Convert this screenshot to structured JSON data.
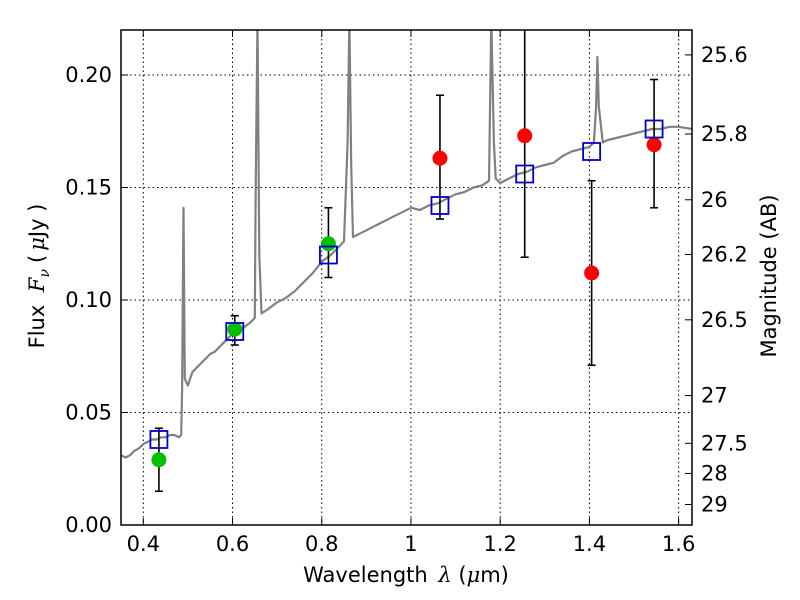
{
  "chart_data": {
    "type": "scatter",
    "title": "",
    "xlabel": "Wavelength  λ (μm)",
    "ylabel": "Flux  Fν  ( μJy )",
    "y2label": "Magnitude (AB)",
    "xlim": [
      0.35,
      1.63
    ],
    "ylim": [
      0.0,
      0.22
    ],
    "grid": true,
    "x_ticks": [
      0.4,
      0.6,
      0.8,
      1.0,
      1.2,
      1.4,
      1.6
    ],
    "x_tick_labels": [
      "0.4",
      "0.6",
      "0.8",
      "1",
      "1.2",
      "1.4",
      "1.6"
    ],
    "y_ticks": [
      0.0,
      0.05,
      0.1,
      0.15,
      0.2
    ],
    "y_tick_labels": [
      "0.00",
      "0.05",
      "0.10",
      "0.15",
      "0.20"
    ],
    "mag_ticks": [
      "25.6",
      "25.8",
      "26",
      "26.2",
      "26.5",
      "27",
      "27.5",
      "28",
      "29"
    ],
    "colors": {
      "spectrum": "#808080",
      "green_points": "#00c000",
      "red_points": "#ff0000",
      "model_squares": "#0000cc",
      "error_bars": "#000000"
    },
    "series": [
      {
        "name": "model spectrum",
        "kind": "line",
        "points": [
          [
            0.35,
            0.031
          ],
          [
            0.36,
            0.03
          ],
          [
            0.37,
            0.031
          ],
          [
            0.38,
            0.033
          ],
          [
            0.39,
            0.034
          ],
          [
            0.4,
            0.036
          ],
          [
            0.41,
            0.037
          ],
          [
            0.42,
            0.038
          ],
          [
            0.43,
            0.038
          ],
          [
            0.44,
            0.039
          ],
          [
            0.45,
            0.039
          ],
          [
            0.46,
            0.04
          ],
          [
            0.47,
            0.04
          ],
          [
            0.48,
            0.039
          ],
          [
            0.485,
            0.04
          ],
          [
            0.487,
            0.06
          ],
          [
            0.49,
            0.141
          ],
          [
            0.493,
            0.065
          ],
          [
            0.5,
            0.062
          ],
          [
            0.51,
            0.068
          ],
          [
            0.52,
            0.07
          ],
          [
            0.53,
            0.072
          ],
          [
            0.54,
            0.074
          ],
          [
            0.55,
            0.076
          ],
          [
            0.56,
            0.077
          ],
          [
            0.57,
            0.079
          ],
          [
            0.58,
            0.081
          ],
          [
            0.59,
            0.083
          ],
          [
            0.6,
            0.085
          ],
          [
            0.62,
            0.087
          ],
          [
            0.64,
            0.09
          ],
          [
            0.65,
            0.092
          ],
          [
            0.652,
            0.15
          ],
          [
            0.656,
            0.225
          ],
          [
            0.66,
            0.12
          ],
          [
            0.665,
            0.094
          ],
          [
            0.68,
            0.096
          ],
          [
            0.7,
            0.099
          ],
          [
            0.72,
            0.101
          ],
          [
            0.74,
            0.104
          ],
          [
            0.76,
            0.108
          ],
          [
            0.78,
            0.112
          ],
          [
            0.8,
            0.117
          ],
          [
            0.82,
            0.12
          ],
          [
            0.84,
            0.124
          ],
          [
            0.85,
            0.126
          ],
          [
            0.858,
            0.17
          ],
          [
            0.862,
            0.225
          ],
          [
            0.866,
            0.16
          ],
          [
            0.87,
            0.128
          ],
          [
            0.88,
            0.129
          ],
          [
            0.9,
            0.131
          ],
          [
            0.92,
            0.133
          ],
          [
            0.94,
            0.135
          ],
          [
            0.96,
            0.137
          ],
          [
            0.98,
            0.139
          ],
          [
            1.0,
            0.141
          ],
          [
            1.02,
            0.14
          ],
          [
            1.04,
            0.142
          ],
          [
            1.06,
            0.143
          ],
          [
            1.08,
            0.145
          ],
          [
            1.1,
            0.147
          ],
          [
            1.12,
            0.148
          ],
          [
            1.14,
            0.15
          ],
          [
            1.16,
            0.151
          ],
          [
            1.175,
            0.153
          ],
          [
            1.18,
            0.225
          ],
          [
            1.186,
            0.17
          ],
          [
            1.19,
            0.154
          ],
          [
            1.2,
            0.152
          ],
          [
            1.22,
            0.154
          ],
          [
            1.24,
            0.156
          ],
          [
            1.26,
            0.157
          ],
          [
            1.28,
            0.159
          ],
          [
            1.3,
            0.16
          ],
          [
            1.32,
            0.161
          ],
          [
            1.34,
            0.164
          ],
          [
            1.36,
            0.166
          ],
          [
            1.38,
            0.167
          ],
          [
            1.4,
            0.168
          ],
          [
            1.41,
            0.17
          ],
          [
            1.415,
            0.186
          ],
          [
            1.418,
            0.208
          ],
          [
            1.421,
            0.186
          ],
          [
            1.43,
            0.17
          ],
          [
            1.44,
            0.171
          ],
          [
            1.46,
            0.172
          ],
          [
            1.48,
            0.173
          ],
          [
            1.5,
            0.174
          ],
          [
            1.52,
            0.175
          ],
          [
            1.54,
            0.176
          ],
          [
            1.56,
            0.176
          ],
          [
            1.58,
            0.177
          ],
          [
            1.6,
            0.177
          ],
          [
            1.63,
            0.176
          ]
        ]
      },
      {
        "name": "observed (green)",
        "kind": "points",
        "points": [
          {
            "x": 0.435,
            "y": 0.029,
            "yerr": [
              0.015,
              0.043
            ]
          },
          {
            "x": 0.605,
            "y": 0.087,
            "yerr": [
              0.08,
              0.093
            ]
          },
          {
            "x": 0.815,
            "y": 0.125,
            "yerr": [
              0.11,
              0.141
            ]
          }
        ]
      },
      {
        "name": "observed (red)",
        "kind": "points",
        "points": [
          {
            "x": 1.065,
            "y": 0.163,
            "yerr": [
              0.136,
              0.191
            ]
          },
          {
            "x": 1.255,
            "y": 0.173,
            "yerr": [
              0.119,
              0.23
            ]
          },
          {
            "x": 1.405,
            "y": 0.112,
            "yerr": [
              0.071,
              0.153
            ]
          },
          {
            "x": 1.545,
            "y": 0.169,
            "yerr": [
              0.141,
              0.198
            ]
          }
        ]
      },
      {
        "name": "model photometry",
        "kind": "squares",
        "points": [
          {
            "x": 0.435,
            "y": 0.038
          },
          {
            "x": 0.605,
            "y": 0.086
          },
          {
            "x": 0.815,
            "y": 0.12
          },
          {
            "x": 1.065,
            "y": 0.142
          },
          {
            "x": 1.255,
            "y": 0.156
          },
          {
            "x": 1.405,
            "y": 0.166
          },
          {
            "x": 1.545,
            "y": 0.176
          }
        ]
      }
    ]
  }
}
